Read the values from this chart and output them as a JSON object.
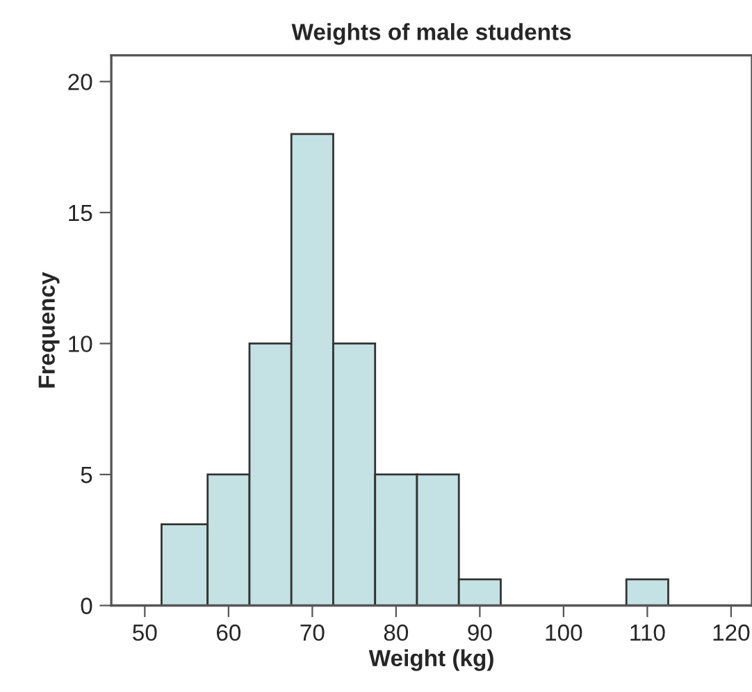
{
  "chart_data": {
    "type": "histogram",
    "title": "Weights of male students",
    "xlabel": "Weight (kg)",
    "ylabel": "Frequency",
    "bins": [
      52,
      57.5,
      62.5,
      67.5,
      72.5,
      77.5,
      82.5,
      87.5,
      92.5,
      107.5,
      112.5
    ],
    "values": [
      3.1,
      5,
      10,
      18,
      10,
      5,
      5,
      1,
      0,
      1
    ],
    "color": "#c4e1e3",
    "xlim": [
      46,
      122.5
    ],
    "xticks": [
      50,
      60,
      70,
      80,
      90,
      100,
      110,
      120
    ],
    "ylim": [
      0,
      21
    ],
    "yticks": [
      0,
      5,
      10,
      15,
      20
    ],
    "grid": false
  }
}
